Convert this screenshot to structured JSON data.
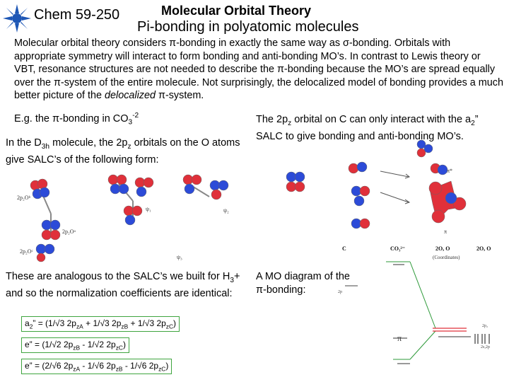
{
  "header": {
    "course": "Chem 59-250",
    "title_line1": "Molecular Orbital Theory",
    "title_line2": "Pi-bonding in  polyatomic molecules"
  },
  "intro": {
    "s1": "Molecular orbital theory considers π-bonding in exactly the same way as σ-bonding.  Orbitals with appropriate symmetry will interact to form bonding and anti-bonding MO’s.  In contrast to Lewis theory or VBT, resonance structures are not needed to describe the π-bonding because the MO’s are spread equally over the π-system of the entire molecule.  Not surprisingly, the delocalized model of bonding provides a much better picture of the ",
    "emph": "delocalized",
    "s2": " π-system."
  },
  "left": {
    "eg_pre": "E.g. the π-bonding in CO",
    "eg_sub": "3",
    "eg_sup": "-2",
    "d3h_a": "In the D",
    "d3h_sub": "3h",
    "d3h_b": " molecule, the 2p",
    "d3h_sub2": "z",
    "d3h_c": " orbitals on the O atoms give SALC’s of the following form:",
    "fig_labels": [
      "2p₂Oᵇ",
      "ψ₁",
      "ψ₂",
      "2p₂Oᵃ",
      "2p₂Oᶜ",
      "ψ₃"
    ],
    "analog_a": "These are analogous to the SALC’s we built for H",
    "analog_sub": "3",
    "analog_b": "+ and so the normalization coefficients are identical:"
  },
  "equations": {
    "eq1_a": "a",
    "eq1_sub1": "2",
    "eq1_b": "” = (1/√3 2p",
    "eq1_sub2": "zA",
    "eq1_c": " + 1/√3 2p",
    "eq1_sub3": "zB",
    "eq1_d": " + 1/√3 2p",
    "eq1_sub4": "zC",
    "eq1_e": ")",
    "eq2_a": "e” = (1/√2 2p",
    "eq2_sub1": "zB",
    "eq2_b": " - 1/√2 2p",
    "eq2_sub2": "zC",
    "eq2_c": ")",
    "eq3_a": "e” = (2/√6 2p",
    "eq3_sub1": "zA",
    "eq3_b": " - 1/√6 2p",
    "eq3_sub2": "zB",
    "eq3_c": " - 1/√6 2p",
    "eq3_sub3": "zC",
    "eq3_d": ")"
  },
  "right": {
    "c_a": "The 2p",
    "c_sub": "z",
    "c_b": " orbital on C can only interact with the a",
    "c_sub2": "2",
    "c_c": "” SALC to give bonding and anti-bonding MO’s.",
    "mo_label": "A MO diagram of the π-bonding:",
    "fig_labels": [
      "π*",
      "π",
      "C",
      "CO₃²⁻",
      "2O, O",
      "2O, O",
      "(Coordinates)",
      "2p",
      "2p₂",
      "π",
      "2s,2p"
    ]
  },
  "colors": {
    "lobe_red": "#e0303a",
    "lobe_blue": "#2c4bd8",
    "equation_border": "#3fa53f",
    "mo_green": "#2e9a3a"
  }
}
